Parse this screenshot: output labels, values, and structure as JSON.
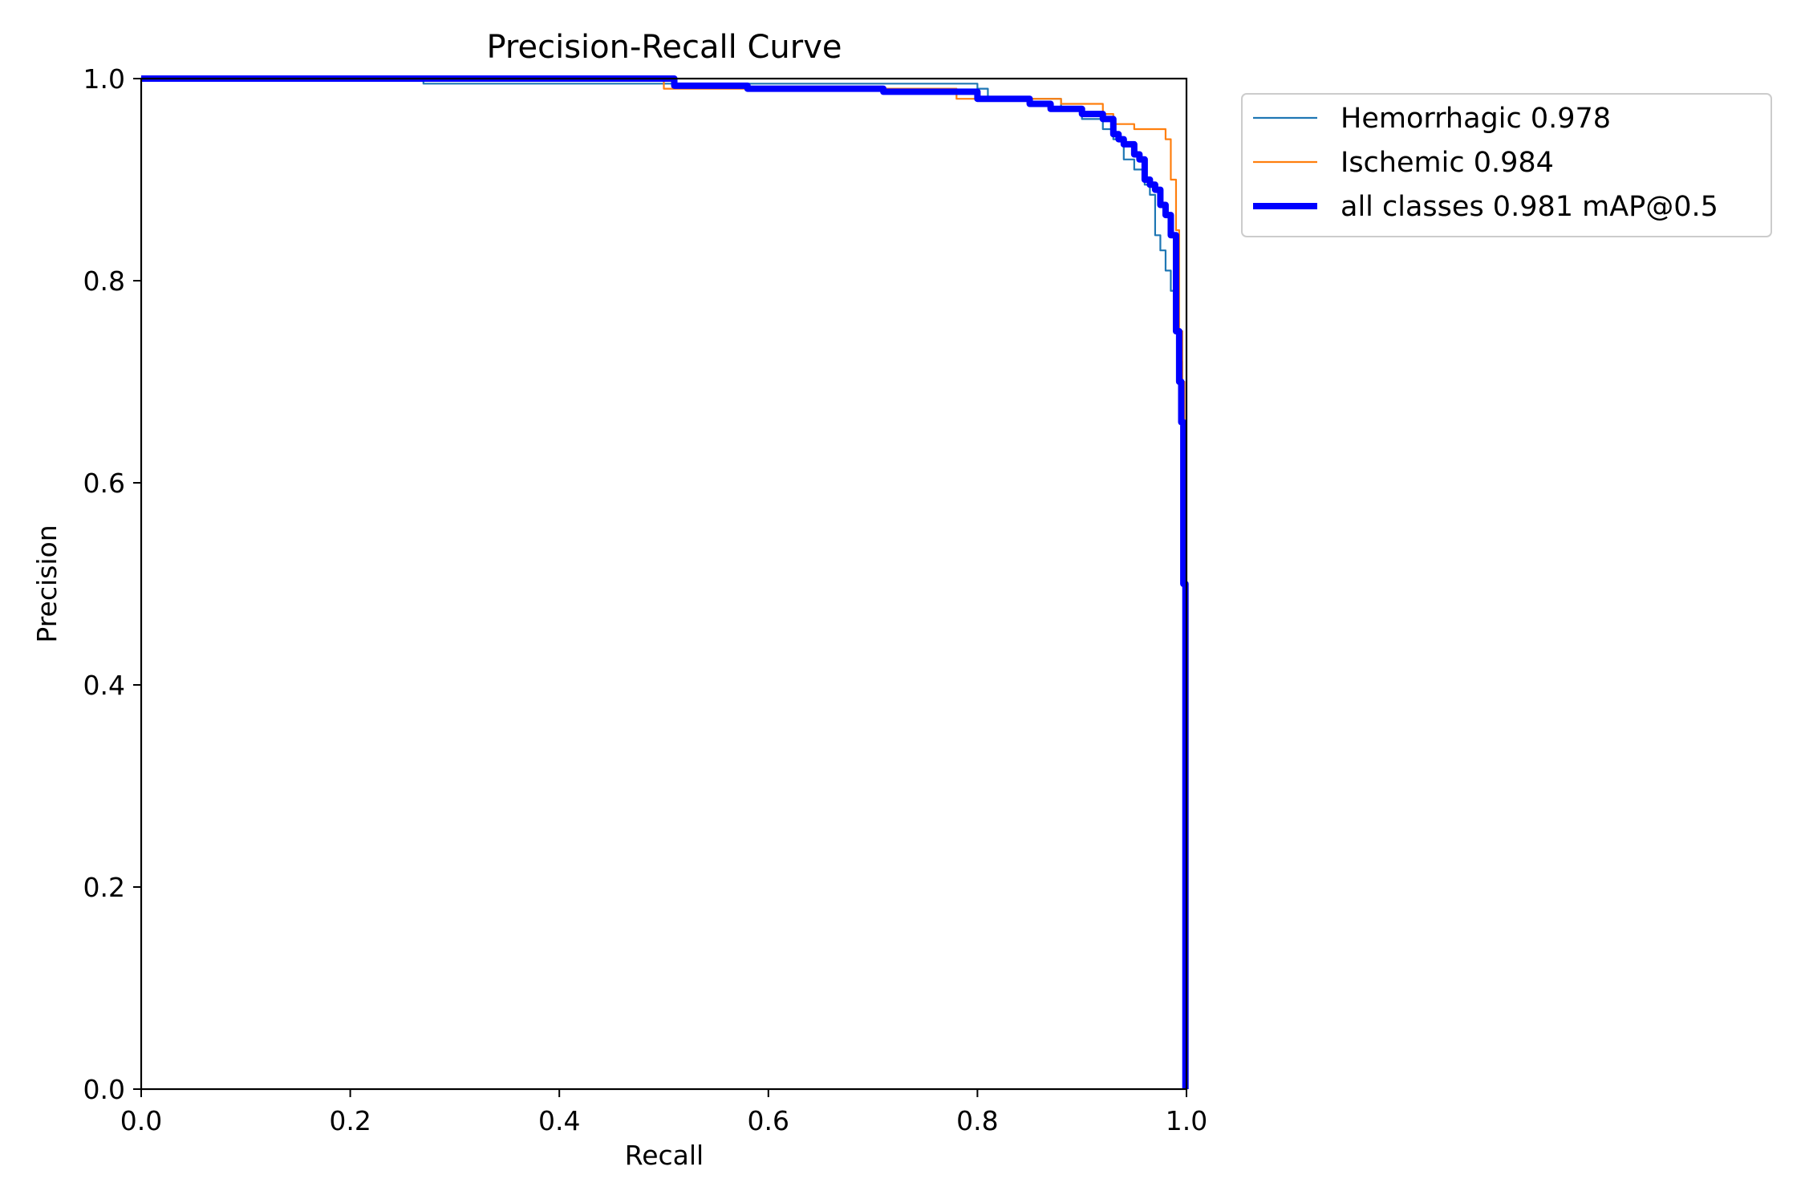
{
  "chart_data": {
    "type": "line",
    "title": "Precision-Recall Curve",
    "xlabel": "Recall",
    "ylabel": "Precision",
    "xlim": [
      0,
      1
    ],
    "ylim": [
      0,
      1
    ],
    "xticks": [
      "0.0",
      "0.2",
      "0.4",
      "0.6",
      "0.8",
      "1.0"
    ],
    "yticks": [
      "0.0",
      "0.2",
      "0.4",
      "0.6",
      "0.8",
      "1.0"
    ],
    "grid": false,
    "legend_position": "outside-top-right",
    "series": [
      {
        "name": "Hemorrhagic 0.978",
        "color": "#1f77b4",
        "line_width": "thin",
        "x": [
          0.0,
          0.27,
          0.27,
          0.8,
          0.8,
          0.81,
          0.81,
          0.88,
          0.88,
          0.9,
          0.9,
          0.92,
          0.92,
          0.93,
          0.93,
          0.94,
          0.94,
          0.95,
          0.95,
          0.96,
          0.96,
          0.965,
          0.965,
          0.97,
          0.97,
          0.975,
          0.975,
          0.98,
          0.98,
          0.985,
          0.985,
          0.99,
          0.99,
          0.993,
          0.993,
          0.996,
          0.996,
          0.998,
          0.998
        ],
        "y": [
          1.0,
          1.0,
          0.995,
          0.995,
          0.99,
          0.99,
          0.98,
          0.98,
          0.97,
          0.97,
          0.96,
          0.96,
          0.95,
          0.95,
          0.94,
          0.94,
          0.92,
          0.92,
          0.91,
          0.91,
          0.895,
          0.895,
          0.885,
          0.885,
          0.845,
          0.845,
          0.83,
          0.83,
          0.81,
          0.81,
          0.79,
          0.79,
          0.76,
          0.76,
          0.72,
          0.72,
          0.655,
          0.655,
          0.0
        ]
      },
      {
        "name": "Ischemic 0.984",
        "color": "#ff7f0e",
        "line_width": "thin",
        "x": [
          0.0,
          0.5,
          0.5,
          0.78,
          0.78,
          0.88,
          0.88,
          0.92,
          0.92,
          0.93,
          0.93,
          0.95,
          0.95,
          0.98,
          0.98,
          0.985,
          0.985,
          0.99,
          0.99,
          0.993,
          0.993,
          0.996,
          0.996,
          0.998,
          0.998
        ],
        "y": [
          1.0,
          1.0,
          0.99,
          0.99,
          0.98,
          0.98,
          0.975,
          0.975,
          0.965,
          0.965,
          0.955,
          0.955,
          0.95,
          0.95,
          0.94,
          0.94,
          0.9,
          0.9,
          0.85,
          0.85,
          0.75,
          0.75,
          0.7,
          0.7,
          0.0
        ]
      },
      {
        "name": "all classes 0.981 mAP@0.5",
        "color": "#0000ff",
        "line_width": "thick",
        "x": [
          0.0,
          0.51,
          0.51,
          0.58,
          0.58,
          0.71,
          0.71,
          0.8,
          0.8,
          0.85,
          0.85,
          0.87,
          0.87,
          0.9,
          0.9,
          0.92,
          0.92,
          0.93,
          0.93,
          0.935,
          0.935,
          0.94,
          0.94,
          0.95,
          0.95,
          0.955,
          0.955,
          0.96,
          0.96,
          0.965,
          0.965,
          0.97,
          0.97,
          0.975,
          0.975,
          0.98,
          0.98,
          0.985,
          0.985,
          0.99,
          0.99,
          0.993,
          0.993,
          0.995,
          0.995,
          0.997,
          0.997,
          0.999,
          0.999
        ],
        "y": [
          1.0,
          1.0,
          0.993,
          0.993,
          0.99,
          0.99,
          0.987,
          0.987,
          0.98,
          0.98,
          0.975,
          0.975,
          0.97,
          0.97,
          0.965,
          0.965,
          0.96,
          0.96,
          0.945,
          0.945,
          0.94,
          0.94,
          0.935,
          0.935,
          0.925,
          0.925,
          0.92,
          0.92,
          0.9,
          0.9,
          0.895,
          0.895,
          0.89,
          0.89,
          0.875,
          0.875,
          0.865,
          0.865,
          0.845,
          0.845,
          0.75,
          0.75,
          0.7,
          0.7,
          0.66,
          0.66,
          0.5,
          0.5,
          0.0
        ]
      }
    ]
  }
}
